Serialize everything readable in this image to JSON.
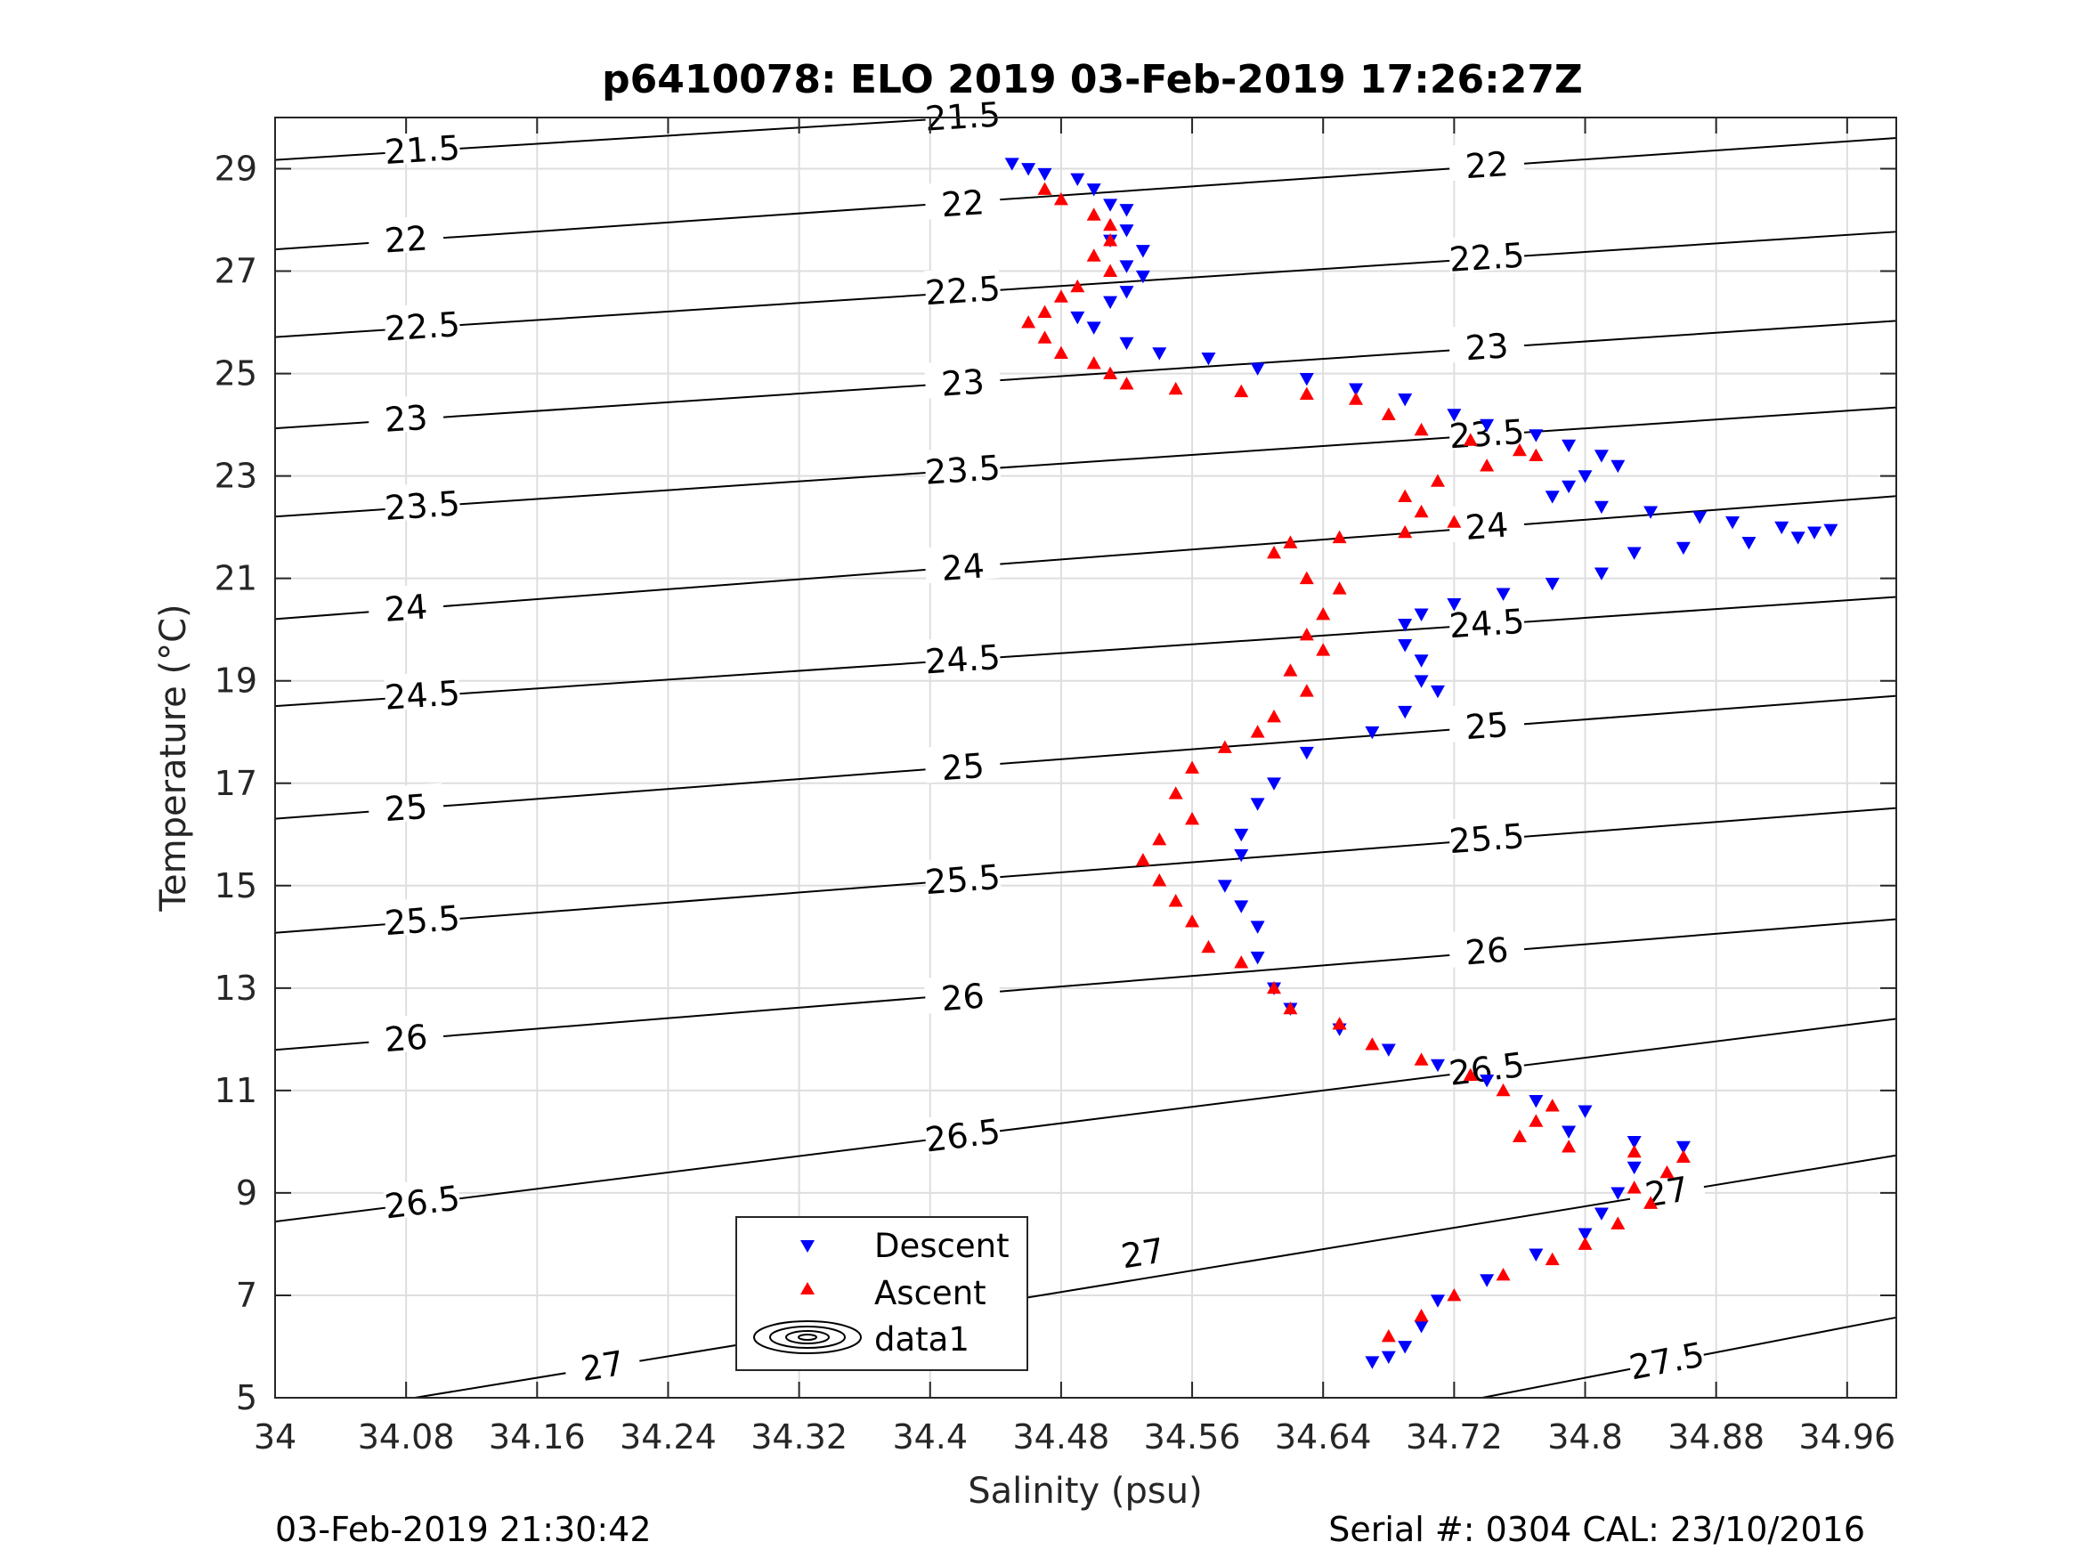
{
  "chart_data": {
    "type": "scatter",
    "title": "p6410078: ELO 2019 03-Feb-2019 17:26:27Z",
    "xlabel": "Salinity (psu)",
    "ylabel": "Temperature (°C)",
    "xlim": [
      34,
      34.99
    ],
    "ylim": [
      5,
      30
    ],
    "x_ticks": [
      "34",
      "34.08",
      "34.16",
      "34.24",
      "34.32",
      "34.4",
      "34.48",
      "34.56",
      "34.64",
      "34.72",
      "34.8",
      "34.88",
      "34.96"
    ],
    "y_ticks": [
      "5",
      "7",
      "9",
      "11",
      "13",
      "15",
      "17",
      "19",
      "21",
      "23",
      "25",
      "27",
      "29"
    ],
    "grid": true,
    "legend_position": "bottom-center",
    "legend": [
      "Descent",
      "Ascent",
      "data1"
    ],
    "series": [
      {
        "name": "Descent",
        "color": "#0000ff",
        "marker": "triangle-down",
        "points": [
          [
            34.45,
            29.1
          ],
          [
            34.46,
            29.0
          ],
          [
            34.47,
            28.9
          ],
          [
            34.49,
            28.8
          ],
          [
            34.5,
            28.6
          ],
          [
            34.51,
            28.3
          ],
          [
            34.52,
            28.2
          ],
          [
            34.52,
            27.8
          ],
          [
            34.51,
            27.6
          ],
          [
            34.53,
            27.4
          ],
          [
            34.52,
            27.1
          ],
          [
            34.53,
            26.9
          ],
          [
            34.52,
            26.6
          ],
          [
            34.51,
            26.4
          ],
          [
            34.49,
            26.1
          ],
          [
            34.5,
            25.9
          ],
          [
            34.52,
            25.6
          ],
          [
            34.54,
            25.4
          ],
          [
            34.57,
            25.3
          ],
          [
            34.6,
            25.1
          ],
          [
            34.63,
            24.9
          ],
          [
            34.66,
            24.7
          ],
          [
            34.69,
            24.5
          ],
          [
            34.72,
            24.2
          ],
          [
            34.74,
            24.0
          ],
          [
            34.77,
            23.8
          ],
          [
            34.79,
            23.6
          ],
          [
            34.81,
            23.4
          ],
          [
            34.82,
            23.2
          ],
          [
            34.8,
            23.0
          ],
          [
            34.79,
            22.8
          ],
          [
            34.78,
            22.6
          ],
          [
            34.81,
            22.4
          ],
          [
            34.84,
            22.3
          ],
          [
            34.87,
            22.2
          ],
          [
            34.89,
            22.1
          ],
          [
            34.92,
            22.0
          ],
          [
            34.94,
            21.9
          ],
          [
            34.95,
            21.95
          ],
          [
            34.93,
            21.8
          ],
          [
            34.9,
            21.7
          ],
          [
            34.86,
            21.6
          ],
          [
            34.83,
            21.5
          ],
          [
            34.81,
            21.1
          ],
          [
            34.78,
            20.9
          ],
          [
            34.75,
            20.7
          ],
          [
            34.72,
            20.5
          ],
          [
            34.7,
            20.3
          ],
          [
            34.69,
            20.1
          ],
          [
            34.69,
            19.7
          ],
          [
            34.7,
            19.4
          ],
          [
            34.7,
            19.0
          ],
          [
            34.71,
            18.8
          ],
          [
            34.69,
            18.4
          ],
          [
            34.67,
            18.0
          ],
          [
            34.63,
            17.6
          ],
          [
            34.61,
            17.0
          ],
          [
            34.6,
            16.6
          ],
          [
            34.59,
            16.0
          ],
          [
            34.59,
            15.6
          ],
          [
            34.58,
            15.0
          ],
          [
            34.59,
            14.6
          ],
          [
            34.6,
            14.2
          ],
          [
            34.6,
            13.6
          ],
          [
            34.61,
            13.0
          ],
          [
            34.62,
            12.6
          ],
          [
            34.65,
            12.2
          ],
          [
            34.68,
            11.8
          ],
          [
            34.71,
            11.5
          ],
          [
            34.74,
            11.2
          ],
          [
            34.77,
            10.8
          ],
          [
            34.8,
            10.6
          ],
          [
            34.79,
            10.2
          ],
          [
            34.83,
            10.0
          ],
          [
            34.86,
            9.9
          ],
          [
            34.83,
            9.5
          ],
          [
            34.82,
            9.0
          ],
          [
            34.81,
            8.6
          ],
          [
            34.8,
            8.2
          ],
          [
            34.77,
            7.8
          ],
          [
            34.74,
            7.3
          ],
          [
            34.71,
            6.9
          ],
          [
            34.7,
            6.4
          ],
          [
            34.69,
            6.0
          ],
          [
            34.68,
            5.8
          ],
          [
            34.67,
            5.7
          ]
        ]
      },
      {
        "name": "Ascent",
        "color": "#ff0000",
        "marker": "triangle-up",
        "points": [
          [
            34.47,
            28.6
          ],
          [
            34.48,
            28.4
          ],
          [
            34.5,
            28.1
          ],
          [
            34.51,
            27.9
          ],
          [
            34.51,
            27.6
          ],
          [
            34.5,
            27.3
          ],
          [
            34.51,
            27.0
          ],
          [
            34.49,
            26.7
          ],
          [
            34.48,
            26.5
          ],
          [
            34.47,
            26.2
          ],
          [
            34.46,
            26.0
          ],
          [
            34.47,
            25.7
          ],
          [
            34.48,
            25.4
          ],
          [
            34.5,
            25.2
          ],
          [
            34.51,
            25.0
          ],
          [
            34.52,
            24.8
          ],
          [
            34.55,
            24.7
          ],
          [
            34.59,
            24.65
          ],
          [
            34.63,
            24.6
          ],
          [
            34.66,
            24.5
          ],
          [
            34.68,
            24.2
          ],
          [
            34.7,
            23.9
          ],
          [
            34.73,
            23.7
          ],
          [
            34.76,
            23.5
          ],
          [
            34.77,
            23.4
          ],
          [
            34.74,
            23.2
          ],
          [
            34.71,
            22.9
          ],
          [
            34.69,
            22.6
          ],
          [
            34.7,
            22.3
          ],
          [
            34.72,
            22.1
          ],
          [
            34.69,
            21.9
          ],
          [
            34.65,
            21.8
          ],
          [
            34.62,
            21.7
          ],
          [
            34.61,
            21.5
          ],
          [
            34.63,
            21.0
          ],
          [
            34.65,
            20.8
          ],
          [
            34.64,
            20.3
          ],
          [
            34.63,
            19.9
          ],
          [
            34.64,
            19.6
          ],
          [
            34.62,
            19.2
          ],
          [
            34.63,
            18.8
          ],
          [
            34.61,
            18.3
          ],
          [
            34.6,
            18.0
          ],
          [
            34.58,
            17.7
          ],
          [
            34.56,
            17.3
          ],
          [
            34.55,
            16.8
          ],
          [
            34.56,
            16.3
          ],
          [
            34.54,
            15.9
          ],
          [
            34.53,
            15.5
          ],
          [
            34.54,
            15.1
          ],
          [
            34.55,
            14.7
          ],
          [
            34.56,
            14.3
          ],
          [
            34.57,
            13.8
          ],
          [
            34.59,
            13.5
          ],
          [
            34.61,
            13.0
          ],
          [
            34.62,
            12.6
          ],
          [
            34.65,
            12.3
          ],
          [
            34.67,
            11.9
          ],
          [
            34.7,
            11.6
          ],
          [
            34.73,
            11.3
          ],
          [
            34.75,
            11.0
          ],
          [
            34.78,
            10.7
          ],
          [
            34.77,
            10.4
          ],
          [
            34.76,
            10.1
          ],
          [
            34.79,
            9.9
          ],
          [
            34.83,
            9.8
          ],
          [
            34.86,
            9.7
          ],
          [
            34.85,
            9.4
          ],
          [
            34.83,
            9.1
          ],
          [
            34.84,
            8.8
          ],
          [
            34.82,
            8.4
          ],
          [
            34.8,
            8.0
          ],
          [
            34.78,
            7.7
          ],
          [
            34.75,
            7.4
          ],
          [
            34.72,
            7.0
          ],
          [
            34.7,
            6.6
          ],
          [
            34.68,
            6.2
          ]
        ]
      }
    ],
    "contours": [
      {
        "level": "21.5",
        "label_positions": [
          [
            34.09,
            29.35
          ],
          [
            34.42,
            30.0
          ]
        ]
      },
      {
        "level": "22",
        "label_positions": [
          [
            34.08,
            27.6
          ],
          [
            34.42,
            28.3
          ],
          [
            34.74,
            29.05
          ]
        ]
      },
      {
        "level": "22.5",
        "label_positions": [
          [
            34.09,
            25.9
          ],
          [
            34.42,
            26.6
          ],
          [
            34.74,
            27.25
          ]
        ]
      },
      {
        "level": "23",
        "label_positions": [
          [
            34.08,
            24.1
          ],
          [
            34.42,
            24.8
          ],
          [
            34.74,
            25.5
          ]
        ]
      },
      {
        "level": "23.5",
        "label_positions": [
          [
            34.09,
            22.4
          ],
          [
            34.42,
            23.1
          ],
          [
            34.74,
            23.8
          ]
        ]
      },
      {
        "level": "24",
        "label_positions": [
          [
            34.08,
            20.4
          ],
          [
            34.42,
            21.2
          ],
          [
            34.74,
            22.0
          ]
        ]
      },
      {
        "level": "24.5",
        "label_positions": [
          [
            34.09,
            18.7
          ],
          [
            34.42,
            19.4
          ],
          [
            34.74,
            20.1
          ]
        ]
      },
      {
        "level": "25",
        "label_positions": [
          [
            34.08,
            16.5
          ],
          [
            34.42,
            17.3
          ],
          [
            34.74,
            18.1
          ]
        ]
      },
      {
        "level": "25.5",
        "label_positions": [
          [
            34.09,
            14.3
          ],
          [
            34.42,
            15.1
          ],
          [
            34.74,
            15.9
          ]
        ]
      },
      {
        "level": "26",
        "label_positions": [
          [
            34.08,
            12.0
          ],
          [
            34.42,
            12.8
          ],
          [
            34.74,
            13.7
          ]
        ]
      },
      {
        "level": "26.5",
        "label_positions": [
          [
            34.09,
            8.8
          ],
          [
            34.42,
            10.1
          ],
          [
            34.74,
            11.4
          ]
        ]
      },
      {
        "level": "27",
        "label_positions": [
          [
            34.2,
            5.6
          ],
          [
            34.53,
            7.8
          ],
          [
            34.85,
            9.0
          ]
        ]
      },
      {
        "level": "27.5",
        "label_positions": [
          [
            34.85,
            5.7
          ]
        ]
      }
    ]
  },
  "footer": {
    "timestamp": "03-Feb-2019 21:30:42",
    "serial": "Serial #: 0304  CAL: 23/10/2016"
  }
}
